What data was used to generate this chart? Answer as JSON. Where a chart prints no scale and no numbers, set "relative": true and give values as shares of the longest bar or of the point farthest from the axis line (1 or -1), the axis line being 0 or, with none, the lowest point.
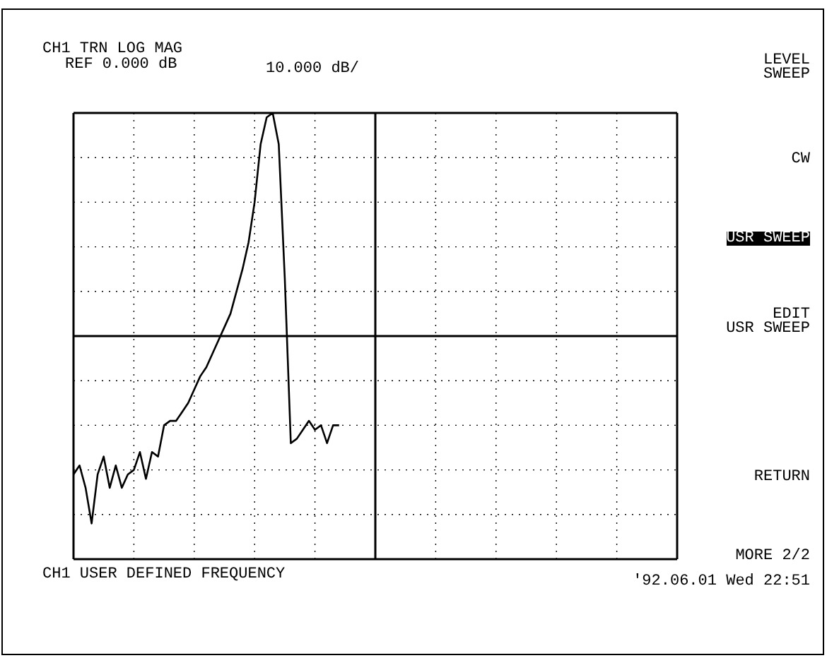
{
  "chart_data": {
    "type": "line",
    "title": "CH1 TRN LOG MAG",
    "subtitle": "REF 0.000 dB",
    "xlabel": "CH1 USER DEFINED FREQUENCY",
    "annotations": [
      "10.000 dB/",
      "LEVEL\nSWEEP",
      "CW",
      "USR SWEEP",
      "EDIT\nUSR SWEEP",
      "RETURN",
      "MORE 2/2",
      "'92.06.01 Wed 22:51"
    ],
    "relative": true,
    "grid": true,
    "marker": "none",
    "line_style": "solid",
    "ref_lines": [
      {
        "axis": "y",
        "value": 0.5,
        "color": "#000000",
        "line_style": "solid"
      }
    ],
    "categories": [
      null,
      null,
      null,
      null,
      null,
      null,
      null,
      null,
      null,
      null,
      null,
      null,
      null,
      null,
      null,
      null,
      null,
      null,
      null,
      null,
      null,
      null,
      null,
      null,
      null,
      null,
      null,
      null,
      null,
      null,
      null,
      null,
      null,
      null,
      null,
      null,
      null,
      null,
      null,
      null,
      null,
      null,
      null,
      null,
      null,
      null,
      null,
      null,
      null,
      null,
      null,
      null,
      null,
      null,
      null,
      null,
      null,
      null,
      null,
      null,
      null,
      null,
      null,
      null,
      null,
      null,
      null,
      null,
      null,
      null,
      null,
      null,
      null,
      null,
      null,
      null,
      null,
      null,
      null,
      null,
      null,
      null,
      null,
      null,
      null,
      null,
      null,
      null,
      null,
      null,
      null,
      null,
      null,
      null,
      null,
      null,
      null,
      null,
      null,
      null,
      null
    ],
    "series": [
      {
        "color": "#000000",
        "values": [
          0.19,
          0.21,
          0.16,
          0.08,
          0.19,
          0.23,
          0.16,
          0.21,
          0.16,
          0.19,
          0.2,
          0.24,
          0.18,
          0.24,
          0.23,
          0.3,
          0.31,
          0.31,
          0.33,
          0.35,
          0.38,
          0.41,
          0.43,
          0.46,
          0.49,
          0.52,
          0.55,
          0.6,
          0.65,
          0.71,
          0.8,
          0.93,
          0.99,
          1,
          0.93,
          0.63,
          0.26,
          0.27,
          0.29,
          0.31,
          0.29,
          0.3,
          0.26,
          0.3,
          0.3,
          null,
          null,
          null,
          null,
          null,
          null,
          null,
          null,
          null,
          null,
          null,
          null,
          null,
          null,
          null,
          null,
          null,
          null,
          null,
          null,
          null,
          null,
          null,
          null,
          null,
          null,
          null,
          null,
          null,
          null,
          null,
          null,
          null,
          null,
          null,
          null,
          null,
          null,
          null,
          null,
          null,
          null,
          null,
          null,
          null,
          null,
          null,
          null,
          null,
          null,
          null,
          null,
          null,
          null,
          null,
          null
        ]
      }
    ]
  }
}
